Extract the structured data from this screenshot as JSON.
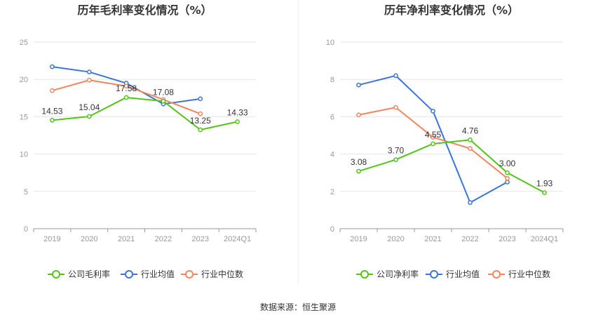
{
  "source": "数据来源：恒生聚源",
  "colors": {
    "company": "#52c41a",
    "industry_avg": "#3a75d9",
    "industry_median": "#f0875f",
    "grid": "#e6e6e6",
    "axis": "#999999",
    "divider": "#eeeeee"
  },
  "chart_data": [
    {
      "type": "line",
      "title": "历年毛利率变化情况（%）",
      "categories": [
        "2019",
        "2020",
        "2021",
        "2022",
        "2023",
        "2024Q1"
      ],
      "ylim": [
        0,
        25
      ],
      "yticks": [
        0,
        5,
        10,
        15,
        20,
        25
      ],
      "grid": true,
      "legend_position": "bottom",
      "series": [
        {
          "name": "公司毛利率",
          "values": [
            14.53,
            15.04,
            17.58,
            17.08,
            13.25,
            14.33
          ],
          "labels": [
            "14.53",
            "15.04",
            "17.58",
            "17.08",
            "13.25",
            "14.33"
          ]
        },
        {
          "name": "行业均值",
          "values": [
            21.7,
            21.0,
            19.5,
            16.7,
            17.4,
            null
          ]
        },
        {
          "name": "行业中位数",
          "values": [
            18.5,
            19.9,
            19.1,
            17.3,
            15.4,
            null
          ]
        }
      ]
    },
    {
      "type": "line",
      "title": "历年净利率变化情况（%）",
      "categories": [
        "2019",
        "2020",
        "2021",
        "2022",
        "2023",
        "2024Q1"
      ],
      "ylim": [
        0,
        10
      ],
      "yticks": [
        0,
        2,
        4,
        6,
        8,
        10
      ],
      "grid": true,
      "legend_position": "bottom",
      "series": [
        {
          "name": "公司净利率",
          "values": [
            3.08,
            3.7,
            4.55,
            4.76,
            3.0,
            1.93
          ],
          "labels": [
            "3.08",
            "3.70",
            "4.55",
            "4.76",
            "3.00",
            "1.93"
          ]
        },
        {
          "name": "行业均值",
          "values": [
            7.7,
            8.2,
            6.3,
            1.4,
            2.5,
            null
          ]
        },
        {
          "name": "行业中位数",
          "values": [
            6.1,
            6.5,
            4.9,
            4.3,
            2.7,
            null
          ]
        }
      ]
    }
  ]
}
